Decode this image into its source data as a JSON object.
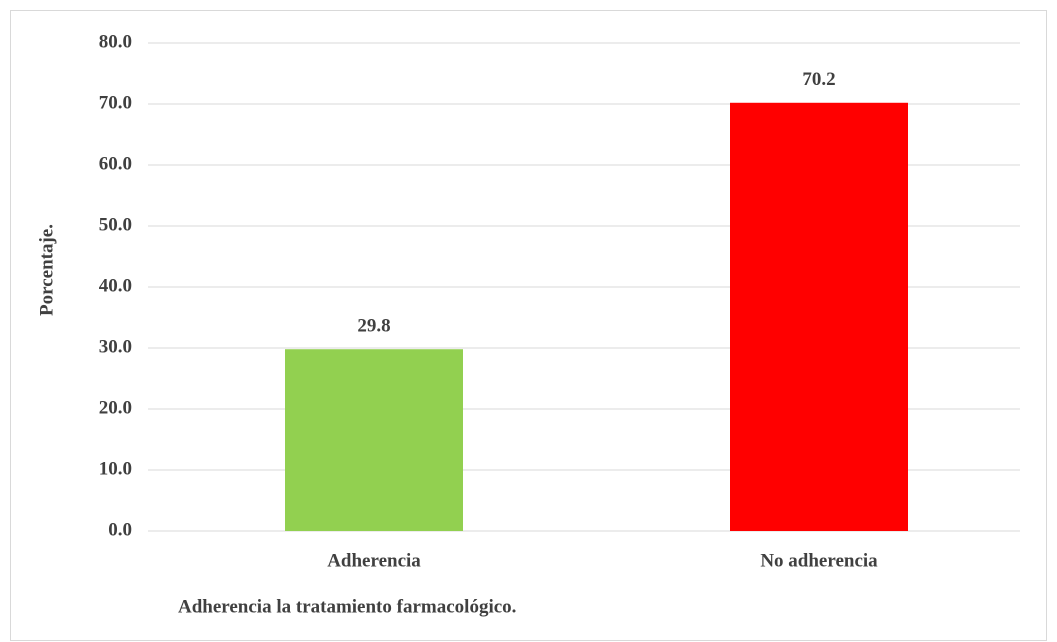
{
  "chart_data": {
    "type": "bar",
    "x_label": "Adherencia la tratamiento farmacológico.",
    "y_label": "Porcentaje.",
    "categories": [
      "Adherencia",
      "No adherencia"
    ],
    "values": [
      29.8,
      70.2
    ],
    "colors": [
      "#92d050",
      "#ff0000"
    ],
    "ylim": [
      0,
      80
    ],
    "yticks": [
      {
        "value": 0,
        "label": "0.0"
      },
      {
        "value": 10,
        "label": "10.0"
      },
      {
        "value": 20,
        "label": "20.0"
      },
      {
        "value": 30,
        "label": "30.0"
      },
      {
        "value": 40,
        "label": "40.0"
      },
      {
        "value": 50,
        "label": "50.0"
      },
      {
        "value": 60,
        "label": "60.0"
      },
      {
        "value": 70,
        "label": "70.0"
      },
      {
        "value": 80,
        "label": "80.0"
      }
    ],
    "grid": true
  }
}
